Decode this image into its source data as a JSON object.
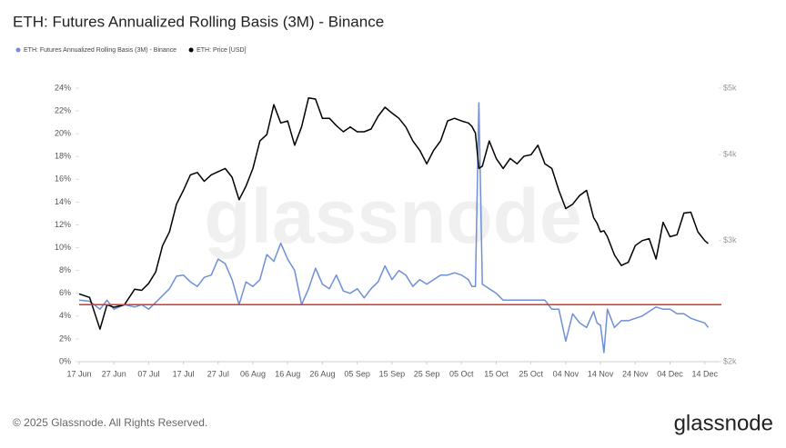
{
  "chart_data": {
    "type": "line",
    "title": "ETH: Futures Annualized Rolling Basis (3M) - Binance",
    "footer": "© 2025 Glassnode. All Rights Reserved.",
    "logo": "glassnode",
    "watermark": "glassnode",
    "x": [
      "06-17",
      "06-20",
      "06-23",
      "06-25",
      "06-27",
      "06-30",
      "07-03",
      "07-05",
      "07-07",
      "07-09",
      "07-11",
      "07-13",
      "07-15",
      "07-17",
      "07-19",
      "07-21",
      "07-23",
      "07-25",
      "07-27",
      "07-29",
      "07-31",
      "08-02",
      "08-04",
      "08-06",
      "08-08",
      "08-10",
      "08-12",
      "08-14",
      "08-16",
      "08-18",
      "08-20",
      "08-22",
      "08-24",
      "08-26",
      "08-28",
      "08-30",
      "09-01",
      "09-03",
      "09-05",
      "09-07",
      "09-09",
      "09-11",
      "09-13",
      "09-15",
      "09-17",
      "09-19",
      "09-21",
      "09-23",
      "09-25",
      "09-27",
      "09-29",
      "10-01",
      "10-03",
      "10-05",
      "10-07",
      "10-08",
      "10-09",
      "10-10",
      "10-11",
      "10-13",
      "10-15",
      "10-17",
      "10-19",
      "10-21",
      "10-23",
      "10-25",
      "10-27",
      "10-29",
      "10-31",
      "11-02",
      "11-04",
      "11-06",
      "11-08",
      "11-10",
      "11-12",
      "11-13",
      "11-14",
      "11-15",
      "11-16",
      "11-18",
      "11-20",
      "11-22",
      "11-24",
      "11-26",
      "11-28",
      "11-30",
      "12-02",
      "12-04",
      "12-06",
      "12-08",
      "12-10",
      "12-12",
      "12-14",
      "12-15"
    ],
    "series": [
      {
        "name": "ETH: Futures Annualized Rolling Basis (3M) - Binance",
        "color": "#6f8fd8",
        "axis": "y",
        "values": [
          5.4,
          5.3,
          4.6,
          5.4,
          4.6,
          5.0,
          4.8,
          5.0,
          4.6,
          5.2,
          5.8,
          6.4,
          7.5,
          7.6,
          7.0,
          6.6,
          7.4,
          7.6,
          9.0,
          8.6,
          7.2,
          5.0,
          7.0,
          6.6,
          7.2,
          9.4,
          8.8,
          10.4,
          9.0,
          8.0,
          5.0,
          6.4,
          8.2,
          6.8,
          6.4,
          7.6,
          6.2,
          6.0,
          6.4,
          5.6,
          6.4,
          7.0,
          8.4,
          7.2,
          8.0,
          7.6,
          6.6,
          7.2,
          6.8,
          7.2,
          7.6,
          7.6,
          7.8,
          7.6,
          7.2,
          6.6,
          6.6,
          22.7,
          6.8,
          6.4,
          6.0,
          5.4,
          5.4,
          5.4,
          5.4,
          5.4,
          5.4,
          5.4,
          4.6,
          4.6,
          1.8,
          4.2,
          3.4,
          3.0,
          4.4,
          3.4,
          3.2,
          0.8,
          4.6,
          3.0,
          3.6,
          3.6,
          3.8,
          4.0,
          4.4,
          4.8,
          4.6,
          4.6,
          4.2,
          4.2,
          3.8,
          3.6,
          3.4,
          3.0
        ]
      },
      {
        "name": "ETH: Price [USD]",
        "color": "#000000",
        "axis": "y2",
        "values": [
          2510,
          2480,
          2230,
          2420,
          2400,
          2420,
          2550,
          2540,
          2600,
          2700,
          2950,
          3090,
          3390,
          3550,
          3740,
          3770,
          3660,
          3740,
          3780,
          3820,
          3710,
          3440,
          3600,
          3820,
          4190,
          4280,
          4730,
          4450,
          4480,
          4130,
          4390,
          4840,
          4820,
          4520,
          4520,
          4410,
          4320,
          4390,
          4320,
          4320,
          4360,
          4550,
          4690,
          4600,
          4520,
          4390,
          4190,
          4060,
          3880,
          4060,
          4190,
          4480,
          4520,
          4480,
          4450,
          4400,
          4300,
          3820,
          3850,
          4190,
          3950,
          3820,
          3950,
          3880,
          3980,
          4000,
          4130,
          3880,
          3820,
          3550,
          3340,
          3390,
          3490,
          3550,
          3240,
          3180,
          3090,
          3100,
          3040,
          2860,
          2760,
          2790,
          2950,
          3000,
          3020,
          2820,
          3190,
          3040,
          3060,
          3290,
          3300,
          3090,
          3000,
          2970
        ]
      }
    ],
    "xlim": [
      "06-17",
      "12-18"
    ],
    "xticks": [
      {
        "value": "06-17",
        "label": "17 Jun"
      },
      {
        "value": "06-27",
        "label": "27 Jun"
      },
      {
        "value": "07-07",
        "label": "07 Jul"
      },
      {
        "value": "07-17",
        "label": "17 Jul"
      },
      {
        "value": "07-27",
        "label": "27 Jul"
      },
      {
        "value": "08-06",
        "label": "06 Aug"
      },
      {
        "value": "08-16",
        "label": "16 Aug"
      },
      {
        "value": "08-26",
        "label": "26 Aug"
      },
      {
        "value": "09-05",
        "label": "05 Sep"
      },
      {
        "value": "09-15",
        "label": "15 Sep"
      },
      {
        "value": "09-25",
        "label": "25 Sep"
      },
      {
        "value": "10-05",
        "label": "05 Oct"
      },
      {
        "value": "10-15",
        "label": "15 Oct"
      },
      {
        "value": "10-25",
        "label": "25 Oct"
      },
      {
        "value": "11-04",
        "label": "04 Nov"
      },
      {
        "value": "11-14",
        "label": "14 Nov"
      },
      {
        "value": "11-24",
        "label": "24 Nov"
      },
      {
        "value": "12-04",
        "label": "04 Dec"
      },
      {
        "value": "12-14",
        "label": "14 Dec"
      }
    ],
    "ylim": [
      0,
      24
    ],
    "yticks": [
      {
        "value": 0,
        "label": "0%"
      },
      {
        "value": 2,
        "label": "2%"
      },
      {
        "value": 4,
        "label": "4%"
      },
      {
        "value": 6,
        "label": "6%"
      },
      {
        "value": 8,
        "label": "8%"
      },
      {
        "value": 10,
        "label": "10%"
      },
      {
        "value": 12,
        "label": "12%"
      },
      {
        "value": 14,
        "label": "14%"
      },
      {
        "value": 16,
        "label": "16%"
      },
      {
        "value": 18,
        "label": "18%"
      },
      {
        "value": 20,
        "label": "20%"
      },
      {
        "value": 22,
        "label": "22%"
      },
      {
        "value": 24,
        "label": "24%"
      }
    ],
    "y2lim": [
      2000,
      5000
    ],
    "y2log": true,
    "y2ticks": [
      {
        "value": 2000,
        "label": "$2k"
      },
      {
        "value": 3000,
        "label": "$3k"
      },
      {
        "value": 4000,
        "label": "$4k"
      },
      {
        "value": 5000,
        "label": "$5k"
      }
    ],
    "reference_line": {
      "value": 5,
      "color": "#e0302a"
    },
    "grid": false,
    "legend": "top-left"
  }
}
